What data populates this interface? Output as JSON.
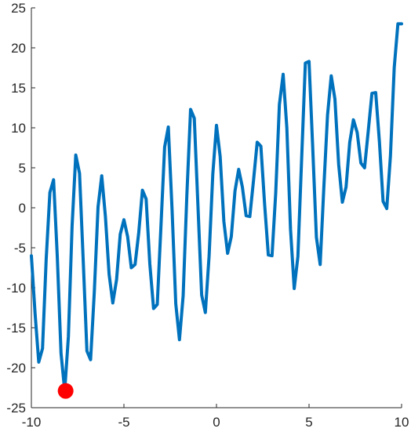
{
  "chart_data": {
    "type": "line",
    "title": "",
    "xlabel": "",
    "ylabel": "",
    "xlim": [
      -10,
      10
    ],
    "ylim": [
      -25,
      25
    ],
    "xticks": [
      -10,
      -5,
      0,
      5,
      10
    ],
    "yticks": [
      -25,
      -20,
      -15,
      -10,
      -5,
      0,
      5,
      10,
      15,
      20,
      25
    ],
    "grid": false,
    "series": [
      {
        "color": "#0072BD",
        "x": [
          -10.0,
          -9.8,
          -9.6,
          -9.4,
          -9.2,
          -9.0,
          -8.8,
          -8.6,
          -8.4,
          -8.2,
          -8.0,
          -7.8,
          -7.6,
          -7.4,
          -7.2,
          -7.0,
          -6.8,
          -6.6,
          -6.4,
          -6.2,
          -6.0,
          -5.8,
          -5.6,
          -5.4,
          -5.2,
          -5.0,
          -4.8,
          -4.6,
          -4.4,
          -4.2,
          -4.0,
          -3.8,
          -3.6,
          -3.4,
          -3.2,
          -3.0,
          -2.8,
          -2.6,
          -2.4,
          -2.2,
          -2.0,
          -1.8,
          -1.6,
          -1.4,
          -1.2,
          -1.0,
          -0.8,
          -0.6,
          -0.4,
          -0.2,
          0.0,
          0.2,
          0.4,
          0.6,
          0.8,
          1.0,
          1.2,
          1.4,
          1.6,
          1.8,
          2.0,
          2.2,
          2.4,
          2.6,
          2.8,
          3.0,
          3.2,
          3.4,
          3.6,
          3.8,
          4.0,
          4.2,
          4.4,
          4.6,
          4.8,
          5.0,
          5.2,
          5.4,
          5.6,
          5.8,
          6.0,
          6.2,
          6.4,
          6.6,
          6.8,
          7.0,
          7.2,
          7.4,
          7.6,
          7.8,
          8.0,
          8.2,
          8.4,
          8.6,
          8.8,
          9.0,
          9.2,
          9.4,
          9.6,
          9.8,
          10.0
        ],
        "y": [
          -6.0,
          -13.2,
          -19.3,
          -17.6,
          -6.4,
          1.9,
          3.5,
          -6.0,
          -18.2,
          -22.9,
          -16.1,
          -2.3,
          6.6,
          4.3,
          -6.6,
          -17.9,
          -19.0,
          -10.6,
          0.1,
          4.0,
          -1.1,
          -8.3,
          -11.9,
          -9.0,
          -3.3,
          -1.5,
          -3.6,
          -7.5,
          -7.1,
          -3.1,
          2.2,
          1.1,
          -7.0,
          -12.6,
          -12.1,
          -2.3,
          7.6,
          10.1,
          -0.3,
          -12.0,
          -16.5,
          -11.0,
          1.5,
          12.3,
          11.2,
          0.2,
          -10.9,
          -13.1,
          -6.0,
          4.2,
          10.3,
          6.4,
          -1.7,
          -5.7,
          -3.6,
          2.1,
          4.8,
          2.6,
          -1.0,
          -1.1,
          3.4,
          8.2,
          7.7,
          0.4,
          -5.9,
          -6.0,
          1.8,
          12.9,
          16.7,
          10.0,
          -2.7,
          -10.1,
          -6.1,
          6.2,
          18.1,
          18.3,
          7.5,
          -3.7,
          -7.1,
          2.6,
          11.6,
          16.5,
          13.6,
          5.4,
          0.7,
          2.6,
          8.2,
          11.0,
          9.4,
          5.6,
          5.0,
          9.6,
          14.3,
          14.4,
          8.3,
          0.8,
          -0.1,
          6.5,
          17.5,
          23.0,
          23.0
        ]
      }
    ],
    "marker": {
      "x": -8.15,
      "y": -22.9,
      "color": "#ff0000"
    }
  }
}
